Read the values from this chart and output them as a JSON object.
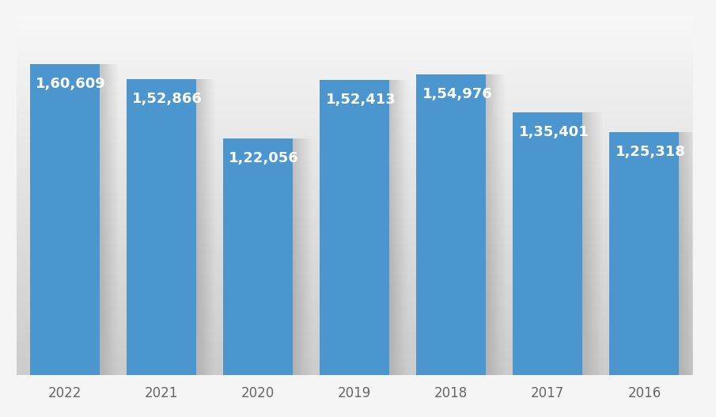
{
  "categories": [
    "2022",
    "2021",
    "2020",
    "2019",
    "2018",
    "2017",
    "2016"
  ],
  "values": [
    160609,
    152866,
    122056,
    152413,
    154976,
    135401,
    125318
  ],
  "labels": [
    "1,60,609",
    "1,52,866",
    "1,22,056",
    "1,52,413",
    "1,54,976",
    "1,35,401",
    "1,25,318"
  ],
  "bar_color": "#4B96CE",
  "label_color": "#FFFFFF",
  "label_fontsize": 13,
  "tick_fontsize": 12,
  "tick_color": "#666666",
  "ylim": [
    0,
    185000
  ],
  "bar_width": 0.72,
  "bg_top": "#F5F5F5",
  "bg_bottom": "#D5D5D5",
  "shadow_color": "#BBBBBB",
  "shadow_alpha": 0.6
}
